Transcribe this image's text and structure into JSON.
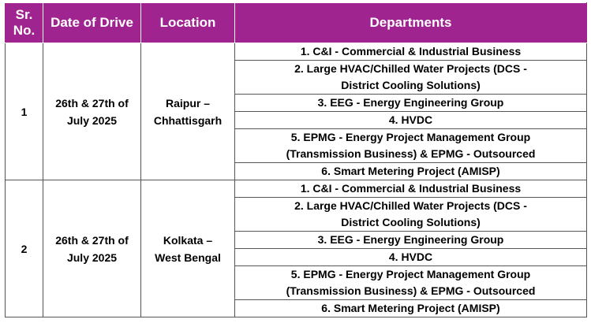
{
  "table": {
    "headers": [
      "Sr. No.",
      "Date of Drive",
      "Location",
      "Departments"
    ],
    "rows": [
      {
        "sr": "1",
        "date": "26th & 27th of July 2025",
        "location": "Raipur – Chhattisgarh",
        "departments": [
          "1. C&I - Commercial & Industrial Business",
          "2. Large HVAC/Chilled Water Projects (DCS - District Cooling Solutions)",
          "3. EEG - Energy Engineering Group",
          "4. HVDC",
          "5. EPMG - Energy Project Management Group (Transmission Business) & EPMG - Outsourced",
          "6. Smart Metering Project (AMISP)"
        ]
      },
      {
        "sr": "2",
        "date": "26th & 27th of July 2025",
        "location": "Kolkata – West Bengal",
        "departments": [
          "1. C&I - Commercial & Industrial Business",
          "2. Large HVAC/Chilled Water Projects (DCS - District Cooling Solutions)",
          "3. EEG - Energy Engineering Group",
          "4. HVDC",
          "5. EPMG - Energy Project Management Group (Transmission Business) & EPMG - Outsourced",
          "6. Smart Metering Project (AMISP)"
        ]
      }
    ]
  }
}
